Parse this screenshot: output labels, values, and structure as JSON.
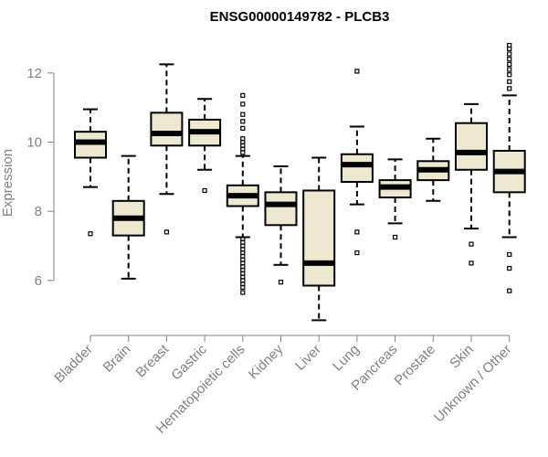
{
  "chart_data": {
    "type": "boxplot",
    "title": "ENSG00000149782 - PLCB3",
    "xlabel": "",
    "ylabel": "Expression",
    "ylim": [
      4.7,
      13.0
    ],
    "yticks": [
      6,
      8,
      10,
      12
    ],
    "box_fill": "#EEE8D0",
    "stroke": "#000000",
    "axis_color": "#808080",
    "categories": [
      "Bladder",
      "Brain",
      "Breast",
      "Gastric",
      "Hematopoietic cells",
      "Kidney",
      "Liver",
      "Lung",
      "Pancreas",
      "Prostate",
      "Skin",
      "Unknown / Other"
    ],
    "boxes": [
      {
        "name": "Bladder",
        "whisker_low": 8.7,
        "q1": 9.55,
        "median": 10.0,
        "q3": 10.3,
        "whisker_high": 10.95,
        "outliers": [
          7.35
        ]
      },
      {
        "name": "Brain",
        "whisker_low": 6.05,
        "q1": 7.3,
        "median": 7.8,
        "q3": 8.3,
        "whisker_high": 9.6,
        "outliers": []
      },
      {
        "name": "Breast",
        "whisker_low": 8.5,
        "q1": 9.9,
        "median": 10.25,
        "q3": 10.85,
        "whisker_high": 12.25,
        "outliers": [
          7.4
        ]
      },
      {
        "name": "Gastric",
        "whisker_low": 9.2,
        "q1": 9.9,
        "median": 10.3,
        "q3": 10.65,
        "whisker_high": 11.25,
        "outliers": [
          8.6
        ]
      },
      {
        "name": "Hematopoietic cells",
        "whisker_low": 7.25,
        "q1": 8.15,
        "median": 8.45,
        "q3": 8.75,
        "whisker_high": 9.6,
        "outliers": [
          5.65,
          5.8,
          5.9,
          6.0,
          6.1,
          6.2,
          6.3,
          6.4,
          6.5,
          6.6,
          6.7,
          6.8,
          6.9,
          7.0,
          7.1,
          7.2,
          9.7,
          9.8,
          9.9,
          10.0,
          10.1,
          10.4,
          10.6,
          10.8,
          11.1,
          11.35
        ]
      },
      {
        "name": "Kidney",
        "whisker_low": 6.45,
        "q1": 7.6,
        "median": 8.2,
        "q3": 8.55,
        "whisker_high": 9.3,
        "outliers": [
          5.95
        ]
      },
      {
        "name": "Liver",
        "whisker_low": 4.85,
        "q1": 5.85,
        "median": 6.5,
        "q3": 8.6,
        "whisker_high": 9.55,
        "outliers": []
      },
      {
        "name": "Lung",
        "whisker_low": 8.2,
        "q1": 8.85,
        "median": 9.35,
        "q3": 9.65,
        "whisker_high": 10.45,
        "outliers": [
          6.8,
          7.4,
          12.05
        ]
      },
      {
        "name": "Pancreas",
        "whisker_low": 7.65,
        "q1": 8.4,
        "median": 8.7,
        "q3": 8.9,
        "whisker_high": 9.5,
        "outliers": [
          7.25
        ]
      },
      {
        "name": "Prostate",
        "whisker_low": 8.3,
        "q1": 8.9,
        "median": 9.2,
        "q3": 9.45,
        "whisker_high": 10.1,
        "outliers": []
      },
      {
        "name": "Skin",
        "whisker_low": 7.5,
        "q1": 9.2,
        "median": 9.7,
        "q3": 10.55,
        "whisker_high": 11.1,
        "outliers": [
          6.5,
          7.05
        ]
      },
      {
        "name": "Unknown / Other",
        "whisker_low": 7.25,
        "q1": 8.55,
        "median": 9.15,
        "q3": 9.75,
        "whisker_high": 11.35,
        "outliers": [
          5.7,
          6.35,
          6.75,
          11.55,
          11.75,
          11.95,
          12.1,
          12.25,
          12.4,
          12.55,
          12.7,
          12.8
        ]
      }
    ]
  }
}
